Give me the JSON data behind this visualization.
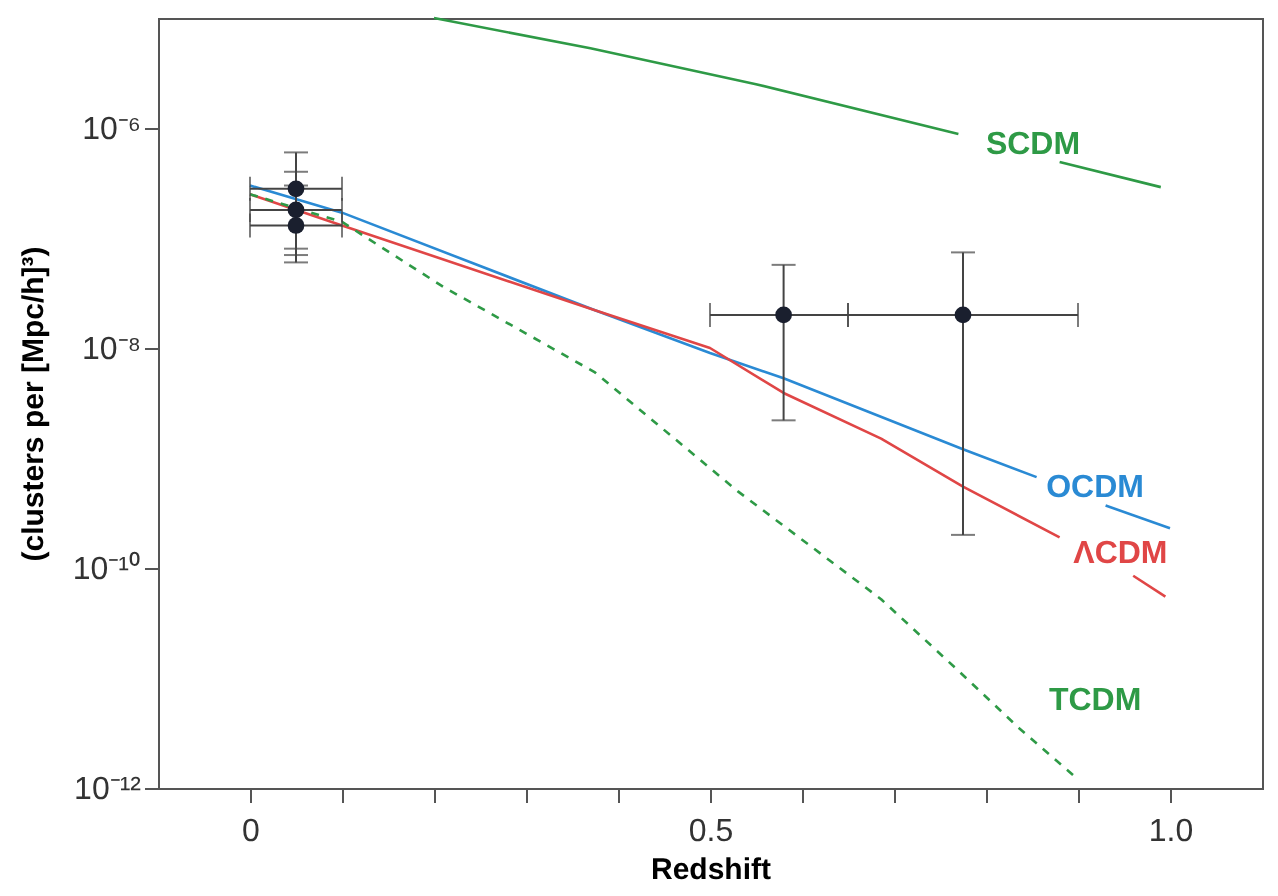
{
  "chart_data": {
    "type": "line",
    "xlabel": "Redshift",
    "ylabel": "(clusters per [Mpc/h]³)",
    "log": "y",
    "xlim": [
      -0.1,
      1.1
    ],
    "ylim": [
      1e-12,
      1e-05
    ],
    "xticks": [
      0,
      {
        "value": 0.1,
        "label": null
      },
      {
        "value": 0.2,
        "label": null
      },
      {
        "value": 0.3,
        "label": null
      },
      {
        "value": 0.4,
        "label": null
      },
      0.5,
      {
        "value": 0.6,
        "label": null
      },
      {
        "value": 0.7,
        "label": null
      },
      {
        "value": 0.8,
        "label": null
      },
      {
        "value": 0.9,
        "label": null
      },
      {
        "value": 1,
        "label": "1.0"
      }
    ],
    "yticks": [
      {
        "value": 1e-12,
        "label": "10⁻¹²"
      },
      {
        "value": 1e-10,
        "label": "10⁻¹⁰"
      },
      {
        "value": 1e-08,
        "label": "10⁻⁸"
      },
      {
        "value": 1e-06,
        "label": "10⁻⁶"
      }
    ],
    "grid": false,
    "series": [
      {
        "name": "SCDM",
        "color": "#2e9a46",
        "line_style": "solid",
        "x": [
          0.2,
          0.37,
          0.55,
          0.77,
          0.82,
          0.88,
          0.99
        ],
        "values": [
          1e-05,
          5.3e-06,
          2.5e-06,
          8.8e-07,
          null,
          4.9e-07,
          2.9e-07
        ]
      },
      {
        "name": "OCDM",
        "color": "#2a8ad4",
        "line_style": "solid",
        "x": [
          0,
          0.1,
          0.375,
          0.5,
          0.58,
          0.775,
          0.855,
          0.9,
          0.93,
          1.0
        ],
        "values": [
          3e-07,
          1.7e-07,
          2.2e-08,
          9e-09,
          5.3e-09,
          1.2e-09,
          6.7e-10,
          null,
          3.7e-10,
          2.3e-10
        ]
      },
      {
        "name": "ΛCDM",
        "color": "#e04646",
        "line_style": "solid",
        "x": [
          0,
          0.1,
          0.375,
          0.5,
          0.58,
          0.686,
          0.775,
          0.88,
          0.92,
          0.96,
          0.995
        ],
        "values": [
          2.5e-07,
          1.3e-07,
          2.2e-08,
          1e-08,
          3.9e-09,
          1.5e-09,
          5.5e-10,
          1.9e-10,
          null,
          8.5e-11,
          5.5e-11
        ]
      },
      {
        "name": "TCDM",
        "color": "#2e9a46",
        "line_style": "dashed",
        "x": [
          0,
          0.1,
          0.21,
          0.375,
          0.53,
          0.686,
          0.766,
          0.836,
          0.9
        ],
        "values": [
          2.5e-07,
          1.4e-07,
          3.6e-08,
          6e-09,
          5e-10,
          5.2e-11,
          1.25e-11,
          3.5e-12,
          1.2e-12
        ]
      },
      {
        "type": "scatter",
        "color": "#1a1f2e",
        "marker": "circle",
        "x": [
          0.05,
          0.05,
          0.05,
          0.58,
          0.775
        ],
        "values": [
          2.8e-07,
          1.8e-07,
          1.3e-07,
          2e-08,
          2e-08
        ],
        "errors": [
          [
            6e-08,
            6e-07
          ],
          [
            8e-08,
            4e-07
          ],
          [
            7e-08,
            3e-07
          ],
          [
            2.2e-09,
            5.7e-08
          ],
          [
            2e-10,
            7.4e-08
          ]
        ],
        "xerrors": [
          [
            0,
            0.1
          ],
          [
            0,
            0.1
          ],
          [
            0,
            0.1
          ],
          [
            0.5,
            0.65
          ],
          [
            0.65,
            0.9
          ]
        ]
      }
    ]
  }
}
